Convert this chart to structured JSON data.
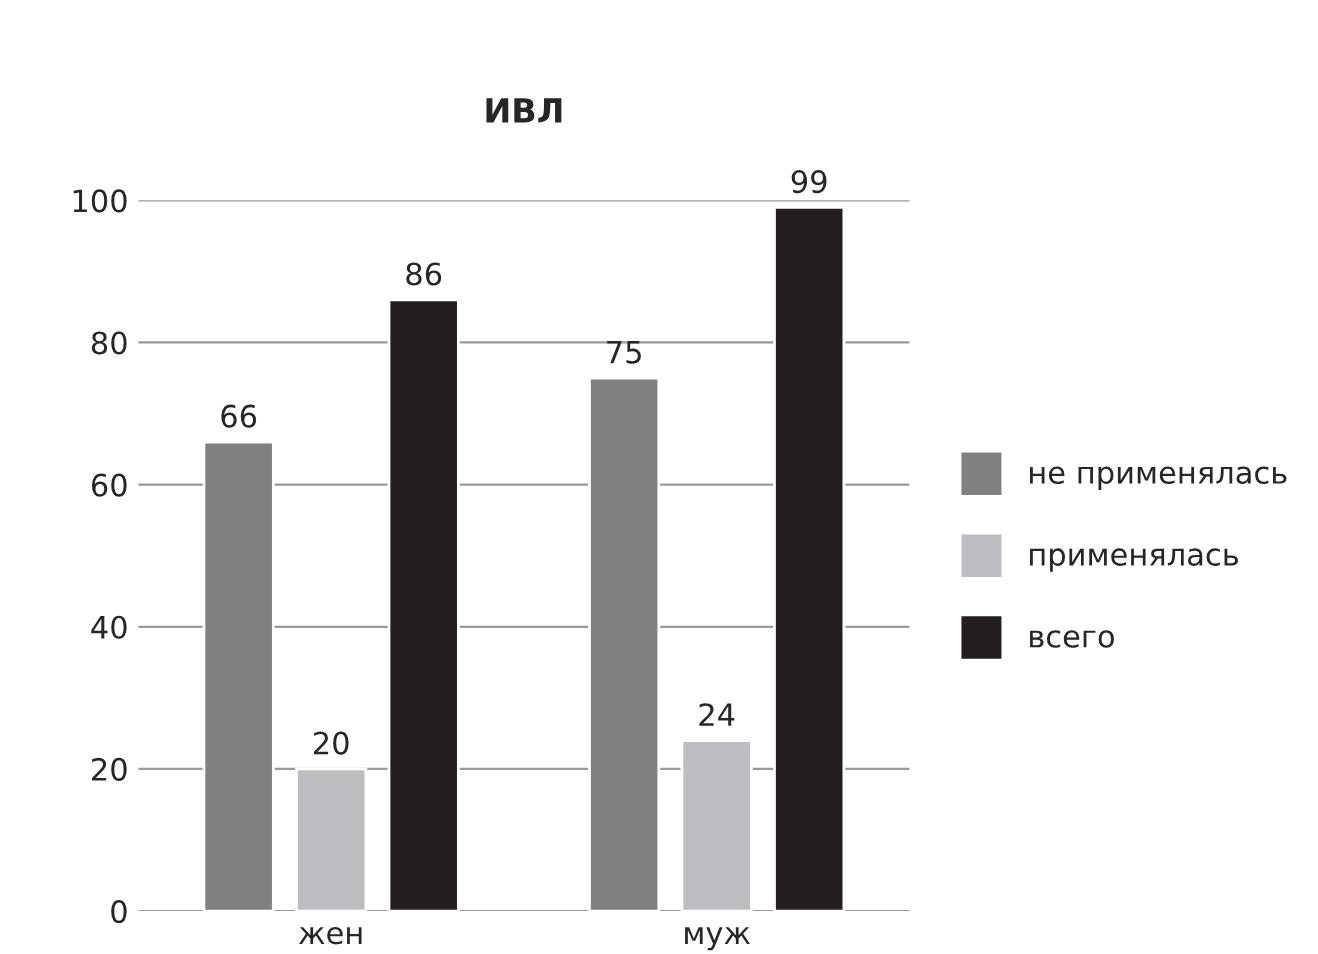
{
  "chart_data": {
    "type": "bar",
    "title": "ИВЛ",
    "categories": [
      "жен",
      "муж"
    ],
    "series": [
      {
        "name": "не применялась",
        "color": "#808083",
        "values": [
          66,
          75
        ]
      },
      {
        "name": "применялась",
        "color": "#bcbdc0",
        "values": [
          20,
          24
        ]
      },
      {
        "name": "всего",
        "color": "#231f20",
        "values": [
          86,
          99
        ]
      }
    ],
    "ylim": [
      0,
      100
    ],
    "yticks": [
      0,
      20,
      40,
      60,
      80,
      100
    ],
    "grid": "y",
    "legend": "right",
    "data_labels": true
  }
}
